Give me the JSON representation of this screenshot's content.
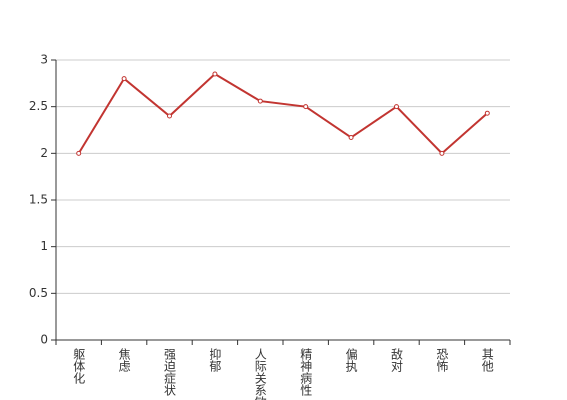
{
  "chart_data": {
    "type": "line",
    "categories": [
      "躯体化",
      "焦虑",
      "强迫症状",
      "抑郁",
      "人际关系敏感",
      "精神病性",
      "偏执",
      "敌对",
      "恐怖",
      "其他"
    ],
    "values": [
      2.0,
      2.8,
      2.4,
      2.85,
      2.56,
      2.5,
      2.17,
      2.5,
      2.0,
      2.43
    ],
    "color": "#c23531",
    "ylim": [
      0,
      3
    ],
    "yticks": [
      0,
      0.5,
      1,
      1.5,
      2,
      2.5,
      3
    ],
    "grid": true
  }
}
